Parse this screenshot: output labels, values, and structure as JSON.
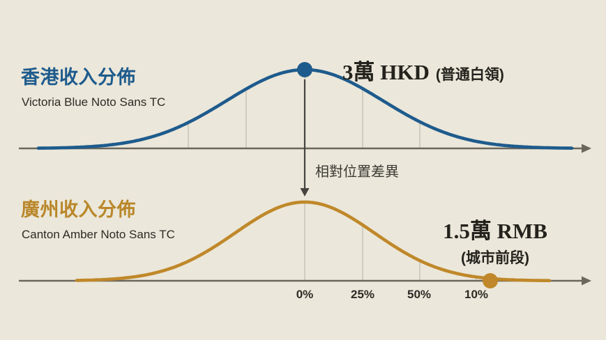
{
  "background": "#ebe7da",
  "colors": {
    "victoria_blue": "#1e5b8d",
    "canton_amber": "#c0882a",
    "amber_title": "#b9872a",
    "ink": "#23221c",
    "axis": "#6b675c",
    "gridline": "#c2beb0",
    "arrow": "#45443e"
  },
  "top_chart": {
    "title": "香港收入分佈",
    "subtitle": "Victoria Blue Noto Sans TC",
    "peak_value": "3萬 HKD",
    "peak_note": "(普通白領)"
  },
  "bottom_chart": {
    "title": "廣州收入分佈",
    "subtitle": "Canton Amber Noto Sans TC",
    "marker_value": "1.5萬 RMB",
    "marker_note": "(城市前段)"
  },
  "annotation": "相對位置差異",
  "x_ticks": [
    "0%",
    "25%",
    "50%",
    "10%"
  ],
  "chart_data": {
    "type": "line",
    "charts": [
      {
        "title": "香港收入分佈",
        "subtitle": "Victoria Blue Noto Sans TC",
        "curve": "normal-distribution",
        "color": "#1e5b8d",
        "marker": "dot-at-peak",
        "marker_annotation": "3萬 HKD (普通白領)"
      },
      {
        "title": "廣州收入分佈",
        "subtitle": "Canton Amber Noto Sans TC",
        "curve": "normal-distribution",
        "color": "#c0882a",
        "marker": "dot-on-axis-right-tail",
        "marker_annotation": "1.5萬 RMB (城市前段)"
      }
    ],
    "x_tick_labels": [
      "0%",
      "25%",
      "50%",
      "10%"
    ],
    "between_charts_annotation": "相對位置差異",
    "annotation_arrow": "from-top-peak-down-to-bottom-peak",
    "grid": "partial-vertical-gridlines",
    "legend_position": "none",
    "ylabel": "",
    "xlabel": ""
  }
}
